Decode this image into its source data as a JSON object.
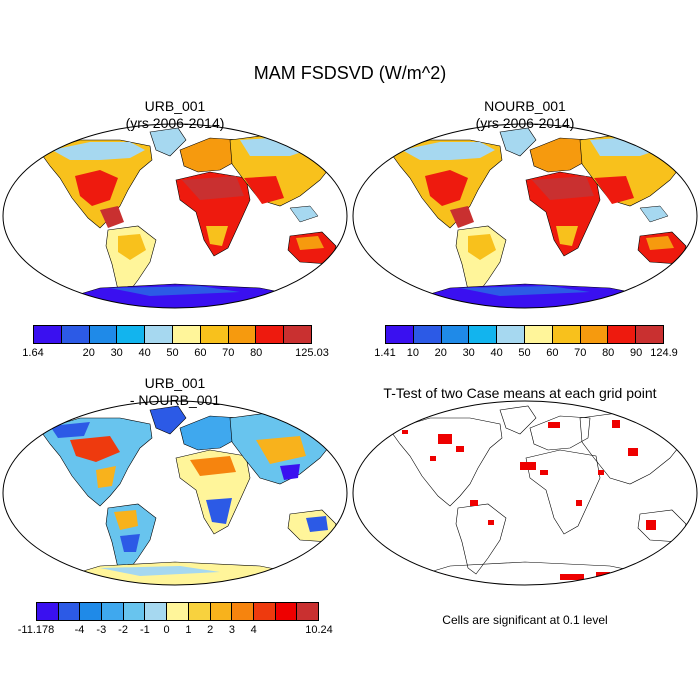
{
  "title": "MAM FSDSVD (W/m^2)",
  "panels": [
    {
      "line1": "URB_001",
      "line2": "(yrs 2006-2014)"
    },
    {
      "line1": "NOURB_001",
      "line2": "(yrs 2006-2014)"
    },
    {
      "line1": "URB_001",
      "line2": "- NOURB_001"
    },
    {
      "line1": "T-Test of two Case means at each grid point",
      "line2": ""
    }
  ],
  "colorbars": [
    {
      "colors": [
        "#3a10f0",
        "#2c5ae6",
        "#1f8ae8",
        "#12b4ee",
        "#a6d8f0",
        "#fff59a",
        "#f8c11c",
        "#f69a0e",
        "#ee1a0e",
        "#c93030"
      ],
      "labels": [
        "1.64",
        "20",
        "30",
        "40",
        "50",
        "60",
        "70",
        "80",
        "125.03"
      ]
    },
    {
      "colors": [
        "#3a10f0",
        "#2c5ae6",
        "#1f8ae8",
        "#12b4ee",
        "#a6d8f0",
        "#fff59a",
        "#f8c11c",
        "#f69a0e",
        "#ee1a0e",
        "#c93030"
      ],
      "labels": [
        "1.41",
        "10",
        "20",
        "30",
        "40",
        "50",
        "60",
        "70",
        "80",
        "90",
        "124.9"
      ]
    },
    {
      "colors": [
        "#3a10f0",
        "#2c5ae6",
        "#1f8ae8",
        "#3fa8ee",
        "#68c4ee",
        "#a6d8f0",
        "#fff59a",
        "#f8d23e",
        "#f8b21c",
        "#f6840e",
        "#ee3a0e",
        "#ee0000",
        "#c93030"
      ],
      "labels": [
        "-11.178",
        "-4",
        "-3",
        "-2",
        "-1",
        "0",
        "1",
        "2",
        "3",
        "4",
        "10.24"
      ]
    }
  ],
  "note": "Cells are significant at 0.1 level"
}
